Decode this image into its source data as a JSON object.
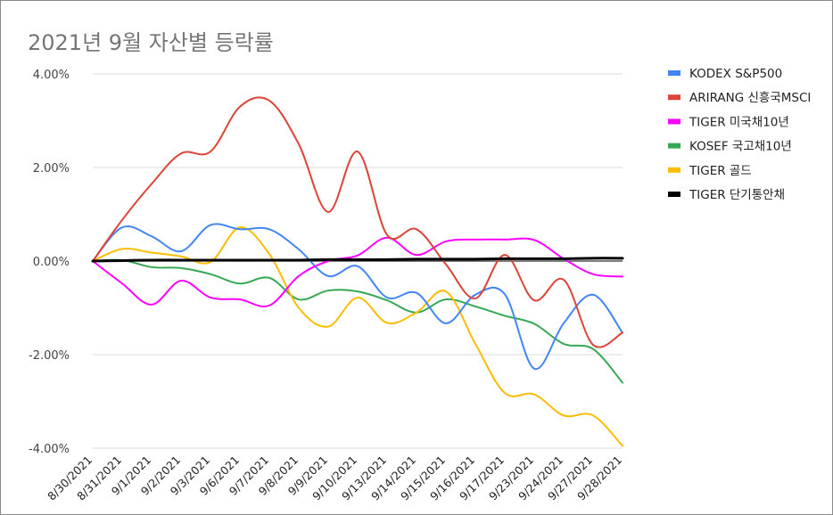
{
  "chart_data": {
    "type": "line",
    "title": "2021년 9월 자산별 등락률",
    "xlabel": "",
    "ylabel": "",
    "ylim": [
      -0.04,
      0.04
    ],
    "yticks": [
      "4.00%",
      "2.00%",
      "0.00%",
      "-2.00%",
      "-4.00%"
    ],
    "ytick_values": [
      0.04,
      0.02,
      0.0,
      -0.02,
      -0.04
    ],
    "grid": true,
    "legend_position": "right",
    "categories": [
      "8/30/2021",
      "8/31/2021",
      "9/1/2021",
      "9/2/2021",
      "9/3/2021",
      "9/6/2021",
      "9/7/2021",
      "9/8/2021",
      "9/9/2021",
      "9/10/2021",
      "9/13/2021",
      "9/14/2021",
      "9/15/2021",
      "9/16/2021",
      "9/17/2021",
      "9/23/2021",
      "9/24/2021",
      "9/27/2021",
      "9/28/2021"
    ],
    "series": [
      {
        "name": "KODEX S&P500",
        "color": "#4285f4",
        "values": [
          0.0,
          0.0072,
          0.0053,
          0.0021,
          0.0077,
          0.0068,
          0.0068,
          0.0025,
          -0.0032,
          -0.0011,
          -0.0078,
          -0.0068,
          -0.0133,
          -0.0072,
          -0.0071,
          -0.023,
          -0.0133,
          -0.0072,
          -0.0153
        ]
      },
      {
        "name": "ARIRANG 신흥국MSCI",
        "color": "#db4437",
        "values": [
          0.0,
          0.0088,
          0.0165,
          0.023,
          0.0234,
          0.033,
          0.0343,
          0.025,
          0.0105,
          0.0234,
          0.0056,
          0.0068,
          -0.0007,
          -0.008,
          0.0013,
          -0.0084,
          -0.004,
          -0.0179,
          -0.0153
        ]
      },
      {
        "name": "TIGER 미국채10년",
        "color": "#ff00ff",
        "values": [
          0.0,
          -0.0048,
          -0.0093,
          -0.0042,
          -0.0078,
          -0.0082,
          -0.0095,
          -0.0032,
          0.0,
          0.0012,
          0.005,
          0.0013,
          0.0042,
          0.0046,
          0.0046,
          0.0045,
          0.0005,
          -0.0028,
          -0.0033
        ]
      },
      {
        "name": "KOSEF 국고채10년",
        "color": "#34a853",
        "values": [
          0.0,
          0.0002,
          -0.0013,
          -0.0015,
          -0.0028,
          -0.0048,
          -0.0036,
          -0.0082,
          -0.0063,
          -0.0065,
          -0.0084,
          -0.011,
          -0.0082,
          -0.0097,
          -0.0117,
          -0.0134,
          -0.0177,
          -0.0188,
          -0.026
        ]
      },
      {
        "name": "TIGER 골드",
        "color": "#fbbc04",
        "values": [
          0.0,
          0.0026,
          0.0018,
          0.001,
          -0.0002,
          0.0072,
          0.0015,
          -0.01,
          -0.014,
          -0.0078,
          -0.0132,
          -0.011,
          -0.0065,
          -0.0177,
          -0.0282,
          -0.0285,
          -0.033,
          -0.033,
          -0.0395
        ]
      },
      {
        "name": "TIGER 단기통안채",
        "color": "#000000",
        "values": [
          0.0,
          0.0001,
          0.0002,
          0.0002,
          0.0002,
          0.0002,
          0.0002,
          0.0002,
          0.0003,
          0.0003,
          0.0003,
          0.0004,
          0.0004,
          0.0004,
          0.0005,
          0.0005,
          0.0005,
          0.0006,
          0.0006
        ]
      }
    ]
  }
}
